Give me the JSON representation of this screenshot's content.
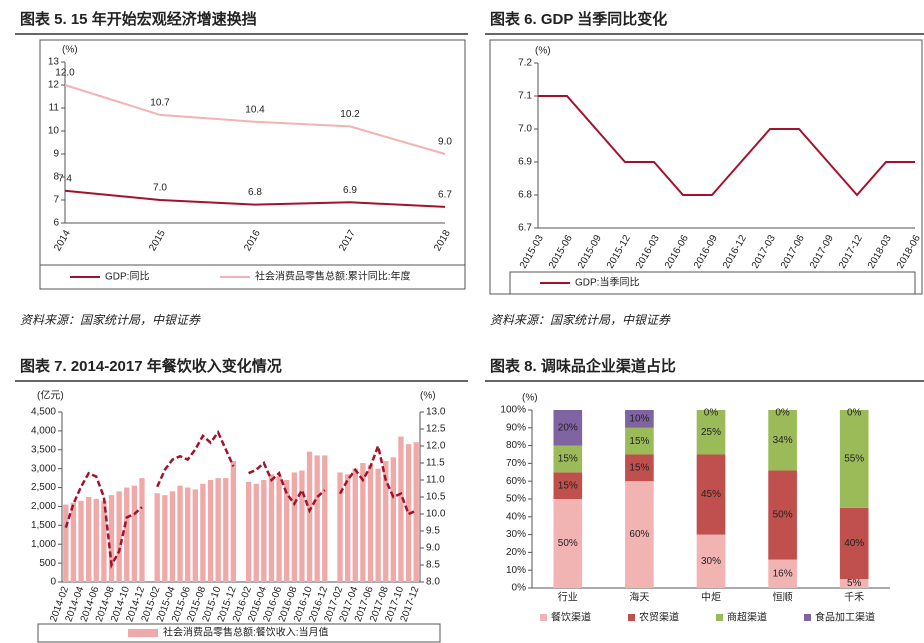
{
  "chart_data": [
    {
      "type": "line",
      "title": "图表 5. 15 年开始宏观经济增速换挡",
      "source": "资料来源：国家统计局，中银证券",
      "y_unit": "(%)",
      "categories": [
        "2014",
        "2015",
        "2016",
        "2017",
        "2018"
      ],
      "ylim": [
        6,
        13
      ],
      "yticks": [
        6,
        7,
        8,
        9,
        10,
        11,
        12,
        13
      ],
      "series": [
        {
          "name": "GDP:同比",
          "color": "#a3122c",
          "values": [
            7.4,
            7.0,
            6.8,
            6.9,
            6.7
          ],
          "value_labels": [
            "7.4",
            "7.0",
            "6.8",
            "6.9",
            "6.7"
          ]
        },
        {
          "name": "社会消费品零售总额:累计同比:年度",
          "color": "#f2b3b3",
          "values": [
            12.0,
            10.7,
            10.4,
            10.2,
            9.0
          ],
          "value_labels": [
            "12.0",
            "10.7",
            "10.4",
            "10.2",
            "9.0"
          ]
        }
      ]
    },
    {
      "type": "line",
      "title": "图表 6. GDP 当季同比变化",
      "source": "资料来源：国家统计局，中银证券",
      "y_unit": "(%)",
      "categories": [
        "2015-03",
        "2015-06",
        "2015-09",
        "2015-12",
        "2016-03",
        "2016-06",
        "2016-09",
        "2016-12",
        "2017-03",
        "2017-06",
        "2017-09",
        "2017-12",
        "2018-03",
        "2018-06"
      ],
      "ylim": [
        6.7,
        7.2
      ],
      "yticks": [
        6.7,
        6.8,
        6.9,
        {
          "value": 7,
          "label": "7.0"
        },
        7.1,
        7.2
      ],
      "series": [
        {
          "name": "GDP:当季同比",
          "color": "#a3122c",
          "values": [
            7.1,
            7.1,
            7.0,
            6.9,
            6.9,
            6.8,
            6.8,
            6.9,
            7.0,
            7.0,
            6.9,
            6.8,
            6.9,
            6.9
          ]
        }
      ]
    },
    {
      "type": "combo",
      "title": "图表 7. 2014-2017 年餐饮收入变化情况",
      "y_unit": "(亿元)",
      "y2_unit": "(%)",
      "categories": [
        "2014-02",
        null,
        "2014-04",
        null,
        "2014-06",
        null,
        "2014-08",
        null,
        "2014-10",
        null,
        "2014-12",
        null,
        "2015-02",
        null,
        "2015-04",
        null,
        "2015-06",
        null,
        "2015-08",
        null,
        "2015-10",
        null,
        "2015-12",
        null,
        "2016-02",
        null,
        "2016-04",
        null,
        "2016-06",
        null,
        "2016-08",
        null,
        "2016-10",
        null,
        "2016-12",
        null,
        "2017-02",
        null,
        "2017-04",
        null,
        "2017-06",
        null,
        "2017-08",
        null,
        "2017-10",
        null,
        "2017-12"
      ],
      "ylim": [
        0,
        4500
      ],
      "yticks": [
        0,
        500,
        {
          "value": 1000,
          "label": "1,000"
        },
        {
          "value": 1500,
          "label": "1,500"
        },
        {
          "value": 2000,
          "label": "2,000"
        },
        {
          "value": 2500,
          "label": "2,500"
        },
        {
          "value": 3000,
          "label": "3,000"
        },
        {
          "value": 3500,
          "label": "3,500"
        },
        {
          "value": 4000,
          "label": "4,000"
        },
        {
          "value": 4500,
          "label": "4,500"
        }
      ],
      "y2lim": [
        8,
        13
      ],
      "y2ticks": [
        {
          "value": 8,
          "label": "8.0"
        },
        8.5,
        {
          "value": 9,
          "label": "9.0"
        },
        9.5,
        {
          "value": 10,
          "label": "10.0"
        },
        10.5,
        {
          "value": 11,
          "label": "11.0"
        },
        11.5,
        {
          "value": 12,
          "label": "12.0"
        },
        12.5,
        {
          "value": 13,
          "label": "13.0"
        }
      ],
      "series": [
        {
          "name": "社会消费品零售总额:餐饮收入:当月值",
          "type": "bar",
          "color": "#f0a9a9",
          "values": [
            2050,
            2100,
            2150,
            2250,
            2200,
            2150,
            2300,
            2400,
            2500,
            2550,
            2750,
            null,
            2350,
            2300,
            2400,
            2550,
            2500,
            2450,
            2600,
            2700,
            2750,
            2750,
            3200,
            null,
            2650,
            2600,
            2700,
            2850,
            2800,
            2700,
            2900,
            2950,
            3450,
            3350,
            3350,
            null,
            2900,
            2850,
            3000,
            3150,
            3100,
            3000,
            3200,
            3300,
            3850,
            3650,
            3700
          ]
        },
        {
          "type": "line",
          "axis": "y2",
          "color": "#a3122c",
          "dashed": true,
          "values": [
            9.6,
            10.3,
            10.8,
            11.2,
            11.1,
            10.5,
            8.5,
            8.9,
            9.9,
            10.0,
            10.2,
            null,
            10.8,
            11.3,
            11.6,
            11.7,
            11.6,
            11.9,
            12.3,
            12.1,
            12.4,
            11.9,
            11.4,
            null,
            11.2,
            11.3,
            11.5,
            11.0,
            11.2,
            10.6,
            10.3,
            10.7,
            10.1,
            10.5,
            10.7,
            null,
            10.6,
            11.0,
            11.3,
            11.0,
            11.4,
            12.0,
            11.0,
            10.5,
            10.6,
            10.0,
            10.1
          ]
        }
      ]
    },
    {
      "type": "stacked_bar",
      "title": "图表 8. 调味品企业渠道占比",
      "y_unit": "(%)",
      "categories": [
        "行业",
        "海天",
        "中炬",
        "恒顺",
        "千禾"
      ],
      "ylim": [
        0,
        100
      ],
      "yticks": [
        {
          "value": 0,
          "label": "0%"
        },
        {
          "value": 10,
          "label": "10%"
        },
        {
          "value": 20,
          "label": "20%"
        },
        {
          "value": 30,
          "label": "30%"
        },
        {
          "value": 40,
          "label": "40%"
        },
        {
          "value": 50,
          "label": "50%"
        },
        {
          "value": 60,
          "label": "60%"
        },
        {
          "value": 70,
          "label": "70%"
        },
        {
          "value": 80,
          "label": "80%"
        },
        {
          "value": 90,
          "label": "90%"
        },
        {
          "value": 100,
          "label": "100%"
        }
      ],
      "series": [
        {
          "name": "餐饮渠道",
          "color": "#f2b3b3",
          "values": [
            50,
            60,
            30,
            16,
            5
          ],
          "value_labels": [
            "50%",
            "60%",
            "30%",
            "16%",
            "5%"
          ]
        },
        {
          "name": "农贸渠道",
          "color": "#c0504d",
          "values": [
            15,
            15,
            45,
            50,
            40
          ],
          "value_labels": [
            "15%",
            "15%",
            "45%",
            "50%",
            "40%"
          ]
        },
        {
          "name": "商超渠道",
          "color": "#9bbb59",
          "values": [
            15,
            15,
            25,
            34,
            55
          ],
          "value_labels": [
            "15%",
            "15%",
            "25%",
            "34%",
            "55%"
          ]
        },
        {
          "name": "食品加工渠道",
          "color": "#8064a2",
          "values": [
            20,
            10,
            0,
            0,
            0
          ],
          "value_labels": [
            "20%",
            "10%",
            "0%",
            "0%",
            "0%"
          ]
        }
      ]
    }
  ]
}
